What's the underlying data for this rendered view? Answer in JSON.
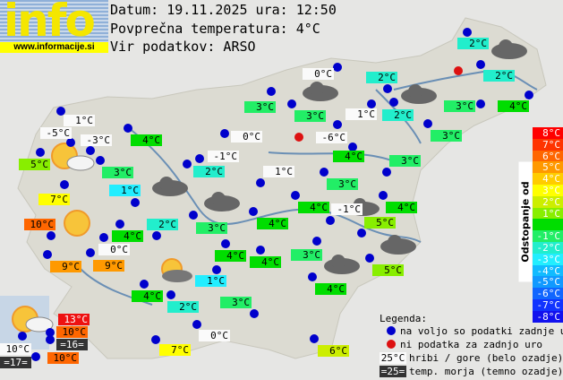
{
  "brand": {
    "logo_text": "info",
    "url": "www.informacije.si"
  },
  "header": {
    "line1": "Datum: 19.11.2025 ura: 12:50",
    "line2": "Povprečna temperatura: 4°C",
    "line3": "Vir podatkov: ARSO"
  },
  "colors": {
    "hill": "#fafafa",
    "sea": "#333333",
    "station_ok": "#0000cc",
    "station_missing": "#dd1111",
    "map_land": "#dcdbd2",
    "river": "#6a8fb5"
  },
  "scale": {
    "title": "Odstopanje od povprečne temperature:",
    "entries": [
      {
        "label": "8°C",
        "color": "#ff0000"
      },
      {
        "label": "7°C",
        "color": "#ff3300"
      },
      {
        "label": "6°C",
        "color": "#ff6600"
      },
      {
        "label": "5°C",
        "color": "#ff9900"
      },
      {
        "label": "4°C",
        "color": "#ffcc00"
      },
      {
        "label": "3°C",
        "color": "#ffff00"
      },
      {
        "label": "2°C",
        "color": "#ccee00"
      },
      {
        "label": "1°C",
        "color": "#88ee00"
      },
      {
        "label": "",
        "color": "#00dd00"
      },
      {
        "label": "-1°C",
        "color": "#22ee66"
      },
      {
        "label": "-2°C",
        "color": "#22eecc"
      },
      {
        "label": "-3°C",
        "color": "#22eeff"
      },
      {
        "label": "-4°C",
        "color": "#11bbff"
      },
      {
        "label": "-5°C",
        "color": "#1199ff"
      },
      {
        "label": "-6°C",
        "color": "#1166ff"
      },
      {
        "label": "-7°C",
        "color": "#1133ff"
      },
      {
        "label": "-8°C",
        "color": "#1111ee"
      }
    ]
  },
  "legend": {
    "title": "Legenda:",
    "available": "na voljo so podatki zadnje ure",
    "missing": "ni podatka za zadnjo uro",
    "hill_sample": "25°C",
    "hill_text": "hribi / gore (belo ozadje)",
    "sea_sample": "=25=",
    "sea_text": "temp. morja (temno ozadje)"
  },
  "stations": [
    {
      "temp": "1°C",
      "kind": "hill"
    },
    {
      "temp": "-5°C",
      "kind": "hill"
    },
    {
      "temp": "-3°C",
      "kind": "hill"
    },
    {
      "temp": "5°C",
      "kind": "#88ee00"
    },
    {
      "temp": "4°C",
      "kind": "#00dd00"
    },
    {
      "temp": "3°C",
      "kind": "#22ee66"
    },
    {
      "temp": "1°C",
      "kind": "#22eeff"
    },
    {
      "temp": "7°C",
      "kind": "#ffff00"
    },
    {
      "temp": "10°C",
      "kind": "#ff6600"
    },
    {
      "temp": "4°C",
      "kind": "#00dd00"
    },
    {
      "temp": "0°C",
      "kind": "hill"
    },
    {
      "temp": "9°C",
      "kind": "#ff9900"
    },
    {
      "temp": "9°C",
      "kind": "#ff9900"
    },
    {
      "temp": "2°C",
      "kind": "#22eecc"
    },
    {
      "temp": "4°C",
      "kind": "#00dd00"
    },
    {
      "temp": "2°C",
      "kind": "#22eecc"
    },
    {
      "temp": "1°C",
      "kind": "#22eeff"
    },
    {
      "temp": "3°C",
      "kind": "#22ee66"
    },
    {
      "temp": "3°C",
      "kind": "#22ee66"
    },
    {
      "temp": "0°C",
      "kind": "hill"
    },
    {
      "temp": "-1°C",
      "kind": "hill"
    },
    {
      "temp": "2°C",
      "kind": "#22eecc"
    },
    {
      "temp": "3°C",
      "kind": "#22ee66"
    },
    {
      "temp": "4°C",
      "kind": "#00dd00"
    },
    {
      "temp": "4°C",
      "kind": "#00dd00"
    },
    {
      "temp": "4°C",
      "kind": "#00dd00"
    },
    {
      "temp": "1°C",
      "kind": "hill"
    },
    {
      "temp": "0°C",
      "kind": "hill"
    },
    {
      "temp": "3°C",
      "kind": "#22ee66"
    },
    {
      "temp": "-6°C",
      "kind": "hill"
    },
    {
      "temp": "1°C",
      "kind": "hill"
    },
    {
      "temp": "2°C",
      "kind": "#22eecc"
    },
    {
      "temp": "2°C",
      "kind": "#22eecc"
    },
    {
      "temp": "4°C",
      "kind": "#00dd00"
    },
    {
      "temp": "3°C",
      "kind": "#22ee66"
    },
    {
      "temp": "3°C",
      "kind": "#22ee66"
    },
    {
      "temp": "4°C",
      "kind": "#00dd00"
    },
    {
      "temp": "-1°C",
      "kind": "hill"
    },
    {
      "temp": "4°C",
      "kind": "#00dd00"
    },
    {
      "temp": "5°C",
      "kind": "#88ee00"
    },
    {
      "temp": "3°C",
      "kind": "#22ee66"
    },
    {
      "temp": "5°C",
      "kind": "#88ee00"
    },
    {
      "temp": "4°C",
      "kind": "#00dd00"
    },
    {
      "temp": "3°C",
      "kind": "#22ee66"
    },
    {
      "temp": "2°C",
      "kind": "#22eecc"
    },
    {
      "temp": "2°C",
      "kind": "#22eecc"
    },
    {
      "temp": "3°C",
      "kind": "#22ee66"
    },
    {
      "temp": "4°C",
      "kind": "#00dd00"
    },
    {
      "temp": "13°C",
      "kind": "#ee1111"
    },
    {
      "temp": "10°C",
      "kind": "#ff6600"
    },
    {
      "temp": "=16=",
      "kind": "sea"
    },
    {
      "temp": "10°C",
      "kind": "hill"
    },
    {
      "temp": "=17=",
      "kind": "sea"
    },
    {
      "temp": "10°C",
      "kind": "#ff6600"
    },
    {
      "temp": "7°C",
      "kind": "#ffff00"
    },
    {
      "temp": "0°C",
      "kind": "hill"
    },
    {
      "temp": "6°C",
      "kind": "#ccee00"
    }
  ]
}
